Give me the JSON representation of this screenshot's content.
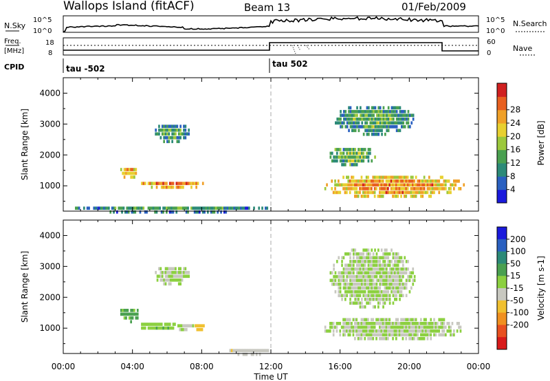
{
  "header": {
    "station": "Wallops Island (fitACF)",
    "beam": "Beam 13",
    "date": "01/Feb/2009"
  },
  "top_panels": {
    "nsky_label": "N.Sky",
    "nsky_scale": [
      "10^5",
      "10^0"
    ],
    "nsearch_label": "N.Search",
    "freq_label_1": "Freq.",
    "freq_label_2": "[MHz]",
    "freq_ticks": [
      "18",
      "8"
    ],
    "nave_ticks": [
      "60",
      "0"
    ],
    "nave_label": "Nave",
    "cpid_label": "CPID",
    "cpid_segments": [
      "tau -502",
      "tau 502"
    ]
  },
  "axes": {
    "xlabel": "Time UT",
    "ylabel": "Slant Range [km]",
    "x_ticks": [
      "00:00",
      "04:00",
      "08:00",
      "12:00",
      "16:00",
      "20:00",
      "00:00"
    ],
    "y_ticks": [
      "1000",
      "2000",
      "3000",
      "4000"
    ]
  },
  "colorbars": {
    "power": {
      "label": "Power [dB]",
      "ticks": [
        "4",
        "8",
        "12",
        "16",
        "20",
        "24",
        "28"
      ],
      "colors": [
        "#1a1adc",
        "#2a60c0",
        "#2c8a78",
        "#4aa050",
        "#9cc83c",
        "#e8d030",
        "#f0a028",
        "#e86020",
        "#d02020"
      ]
    },
    "velocity": {
      "label": "Velocity [m s-1]",
      "ticks": [
        "200",
        "100",
        "50",
        "15",
        "-15",
        "-50",
        "-100",
        "-200"
      ],
      "colors": [
        "#1a1adc",
        "#2a60c0",
        "#2c8a78",
        "#4aa050",
        "#8cd040",
        "#c8c8c0",
        "#f0c030",
        "#f09020",
        "#e85020",
        "#d81a1a"
      ]
    }
  },
  "chart_data": [
    {
      "type": "heatmap",
      "title": "Power [dB]",
      "xlabel": "Time UT",
      "ylabel": "Slant Range [km]",
      "xlim": [
        0,
        24
      ],
      "ylim": [
        180,
        4500
      ],
      "x_ticks": [
        "00:00",
        "04:00",
        "08:00",
        "12:00",
        "16:00",
        "20:00",
        "00:00"
      ],
      "y_ticks": [
        1000,
        2000,
        3000,
        4000
      ],
      "colorbar": {
        "label": "Power [dB]",
        "range": [
          0,
          32
        ]
      },
      "regions": [
        {
          "t0": 3.2,
          "t1": 4.4,
          "r0": 1300,
          "r1": 1700,
          "value": 18
        },
        {
          "t0": 4.4,
          "t1": 8.1,
          "r0": 950,
          "r1": 1250,
          "value": 22
        },
        {
          "t0": 5.2,
          "t1": 7.3,
          "r0": 2450,
          "r1": 3100,
          "value": 9
        },
        {
          "t0": 0.2,
          "t1": 11.9,
          "r0": 180,
          "r1": 450,
          "value": 8
        },
        {
          "t0": 14.9,
          "t1": 23.2,
          "r0": 650,
          "r1": 1450,
          "value": 20
        },
        {
          "t0": 15.3,
          "t1": 18.0,
          "r0": 1700,
          "r1": 2350,
          "value": 11
        },
        {
          "t0": 15.6,
          "t1": 20.3,
          "r0": 2700,
          "r1": 3700,
          "value": 9
        }
      ]
    },
    {
      "type": "heatmap",
      "title": "Velocity [m s-1]",
      "xlabel": "Time UT",
      "ylabel": "Slant Range [km]",
      "xlim": [
        0,
        24
      ],
      "ylim": [
        180,
        4500
      ],
      "x_ticks": [
        "00:00",
        "04:00",
        "08:00",
        "12:00",
        "16:00",
        "20:00",
        "00:00"
      ],
      "y_ticks": [
        1000,
        2000,
        3000,
        4000
      ],
      "colorbar": {
        "label": "Velocity [m s-1]",
        "range": [
          -250,
          250
        ]
      },
      "regions": [
        {
          "t0": 3.2,
          "t1": 4.4,
          "r0": 1250,
          "r1": 1750,
          "value": 60
        },
        {
          "t0": 4.4,
          "t1": 6.5,
          "r0": 950,
          "r1": 1300,
          "value": 40
        },
        {
          "t0": 6.5,
          "t1": 7.5,
          "r0": 950,
          "r1": 1250,
          "value": 0
        },
        {
          "t0": 7.5,
          "t1": 8.1,
          "r0": 900,
          "r1": 1250,
          "value": -60
        },
        {
          "t0": 5.2,
          "t1": 7.3,
          "r0": 2450,
          "r1": 3100,
          "value": 0
        },
        {
          "t0": 9.5,
          "t1": 11.9,
          "r0": 180,
          "r1": 450,
          "value": -40
        },
        {
          "t0": 14.9,
          "t1": 23.2,
          "r0": 650,
          "r1": 1450,
          "value": 0
        },
        {
          "t0": 15.3,
          "t1": 20.3,
          "r0": 1700,
          "r1": 3700,
          "value": 0
        }
      ]
    }
  ]
}
